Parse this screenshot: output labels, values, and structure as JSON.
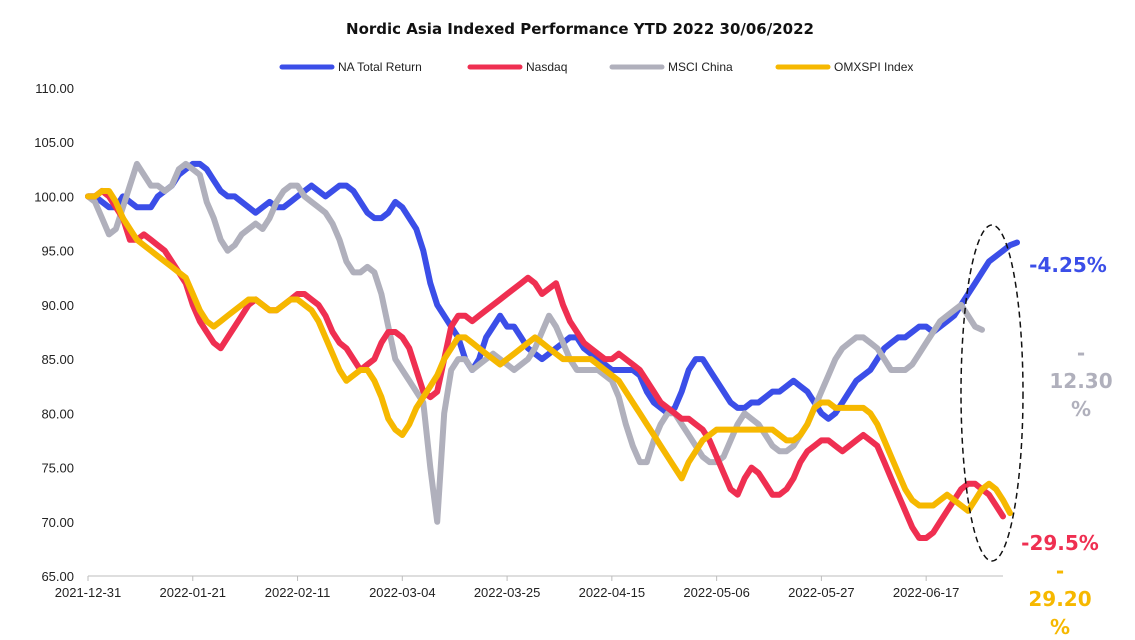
{
  "chart_data": {
    "type": "line",
    "title": "Nordic Asia Indexed Performance YTD 2022 30/06/2022",
    "xlabel": "",
    "ylabel": "",
    "ylim": [
      65,
      110
    ],
    "y_ticks": [
      "65.00",
      "70.00",
      "75.00",
      "80.00",
      "85.00",
      "90.00",
      "95.00",
      "100.00",
      "105.00",
      "110.00"
    ],
    "y_tick_values": [
      65,
      70,
      75,
      80,
      85,
      90,
      95,
      100,
      105,
      110
    ],
    "x_tick_labels": [
      "2021-12-31",
      "2022-01-21",
      "2022-02-11",
      "2022-03-04",
      "2022-03-25",
      "2022-04-15",
      "2022-05-06",
      "2022-05-27",
      "2022-06-17"
    ],
    "x_tick_index": [
      0,
      15,
      30,
      45,
      60,
      75,
      90,
      105,
      120
    ],
    "x_range": [
      0,
      131
    ],
    "grid": false,
    "legend_position": "top",
    "series": [
      {
        "name": "NA Total Return",
        "color": "#3b4ee8",
        "values": [
          100,
          100,
          99.5,
          99,
          99,
          100,
          99.5,
          99,
          99,
          99,
          100,
          100.5,
          101,
          102,
          102.5,
          103,
          103,
          102.5,
          101.5,
          100.5,
          100,
          100,
          99.5,
          99,
          98.5,
          99,
          99.5,
          99,
          99,
          99.5,
          100,
          100.5,
          101,
          100.5,
          100,
          100.5,
          101,
          101,
          100.5,
          99.5,
          98.5,
          98,
          98,
          98.5,
          99.5,
          99,
          98,
          97,
          95,
          92,
          90,
          89,
          88,
          87,
          85,
          84,
          85,
          87,
          88,
          89,
          88,
          88,
          87,
          86,
          85.5,
          85,
          85.5,
          86,
          86.5,
          87,
          87,
          86,
          85.5,
          85,
          84.5,
          84,
          84,
          84,
          84,
          83.5,
          82,
          81,
          80.5,
          80,
          80.5,
          82,
          84,
          85,
          85,
          84,
          83,
          82,
          81,
          80.5,
          80.5,
          81,
          81,
          81.5,
          82,
          82,
          82.5,
          83,
          82.5,
          82,
          81,
          80,
          79.5,
          80,
          81,
          82,
          83,
          83.5,
          84,
          85,
          86,
          86.5,
          87,
          87,
          87.5,
          88,
          88,
          87.5,
          88,
          88.5,
          89,
          90,
          91,
          92,
          93,
          94,
          94.5,
          95,
          95.5,
          95.75
        ]
      },
      {
        "name": "Nasdaq",
        "color": "#ef2f51",
        "values": [
          100,
          100,
          100.5,
          100,
          99,
          98,
          96,
          96,
          96.5,
          96,
          95.5,
          95,
          94,
          93,
          92,
          90,
          88.5,
          87.5,
          86.5,
          86,
          87,
          88,
          89,
          90,
          90.5,
          90,
          89.5,
          89.5,
          90,
          90.5,
          91,
          91,
          90.5,
          90,
          89,
          87.5,
          86.5,
          86,
          85,
          84,
          84.5,
          85,
          86.5,
          87.5,
          87.5,
          87,
          86,
          84,
          82,
          81.5,
          82,
          85,
          88,
          89,
          89,
          88.5,
          89,
          89.5,
          90,
          90.5,
          91,
          91.5,
          92,
          92.5,
          92,
          91,
          91.5,
          92,
          90,
          88.5,
          87.5,
          86.5,
          86,
          85.5,
          85,
          85,
          85.5,
          85,
          84.5,
          84,
          83,
          82,
          81,
          80.5,
          80,
          79.5,
          79.5,
          79,
          78.5,
          77.5,
          76,
          74.5,
          73,
          72.5,
          74,
          75,
          74.5,
          73.5,
          72.5,
          72.5,
          73,
          74,
          75.5,
          76.5,
          77,
          77.5,
          77.5,
          77,
          76.5,
          77,
          77.5,
          78,
          77.5,
          77,
          75.5,
          74,
          72.5,
          71,
          69.5,
          68.5,
          68.5,
          69,
          70,
          71,
          72,
          73,
          73.5,
          73.5,
          73,
          72.5,
          71.5,
          70.5
        ]
      },
      {
        "name": "MSCI China",
        "color": "#b0b0bc",
        "values": [
          100,
          99.5,
          98,
          96.5,
          97,
          99,
          101,
          103,
          102,
          101,
          101,
          100.5,
          101,
          102.5,
          103,
          102.5,
          102,
          99.5,
          98,
          96,
          95,
          95.5,
          96.5,
          97,
          97.5,
          97,
          98,
          99.5,
          100.5,
          101,
          101,
          100,
          99.5,
          99,
          98.5,
          97.5,
          96,
          94,
          93,
          93,
          93.5,
          93,
          91,
          88,
          85,
          84,
          83,
          82,
          81,
          75,
          70,
          80,
          84,
          85,
          85,
          84,
          84.5,
          85,
          85.5,
          85,
          84.5,
          84,
          84.5,
          85,
          86,
          87.5,
          89,
          88,
          86.5,
          85,
          84,
          84,
          84,
          84,
          83.5,
          83,
          81.5,
          79,
          77,
          75.5,
          75.5,
          77.5,
          79,
          80,
          80,
          79,
          78,
          77,
          76,
          75.5,
          75.5,
          76,
          77.5,
          79,
          80,
          79.5,
          79,
          78,
          77,
          76.5,
          76.5,
          77,
          78,
          79,
          80.5,
          82,
          83.5,
          85,
          86,
          86.5,
          87,
          87,
          86.5,
          86,
          85,
          84,
          84,
          84,
          84.5,
          85.5,
          86.5,
          87.5,
          88.5,
          89,
          89.5,
          90,
          89,
          88,
          87.7
        ]
      },
      {
        "name": "OMXSPI Index",
        "color": "#f6b800",
        "values": [
          100,
          100,
          100.5,
          100.5,
          99.5,
          98,
          97,
          96,
          95.5,
          95,
          94.5,
          94,
          93.5,
          93,
          92.5,
          91,
          89.5,
          88.5,
          88,
          88.5,
          89,
          89.5,
          90,
          90.5,
          90.5,
          90,
          89.5,
          89.5,
          90,
          90.5,
          90.5,
          90,
          89.5,
          88.5,
          87,
          85.5,
          84,
          83,
          83.5,
          84,
          84,
          83,
          81.5,
          79.5,
          78.5,
          78,
          79,
          80.5,
          81.5,
          82.5,
          83.5,
          85,
          86,
          87,
          87,
          86.5,
          86,
          85.5,
          85,
          84.5,
          85,
          85.5,
          86,
          86.5,
          87,
          86.5,
          86,
          85.5,
          85,
          85,
          85,
          85,
          85,
          84.5,
          84,
          83.5,
          83,
          82,
          81,
          80,
          79,
          78,
          77,
          76,
          75,
          74,
          75.5,
          76.5,
          77.5,
          78,
          78.5,
          78.5,
          78.5,
          78.5,
          78.5,
          78.5,
          78.5,
          78.5,
          78.5,
          78,
          77.5,
          77.5,
          78,
          79,
          80.5,
          81,
          81,
          80.5,
          80.5,
          80.5,
          80.5,
          80.5,
          80,
          79,
          77.5,
          76,
          74.5,
          73,
          72,
          71.5,
          71.5,
          71.5,
          72,
          72.5,
          72,
          71.5,
          71,
          72,
          73,
          73.5,
          73,
          72,
          70.8
        ]
      }
    ],
    "annotations": [
      {
        "series": "NA Total Return",
        "text": [
          "-4.25%"
        ],
        "color": "#3b4ee8"
      },
      {
        "series": "MSCI China",
        "text": [
          "-",
          "12.30",
          "%"
        ],
        "color": "#b0b0bc"
      },
      {
        "series": "Nasdaq",
        "text": [
          "-29.5%"
        ],
        "color": "#ef2f51"
      },
      {
        "series": "OMXSPI Index",
        "text": [
          "-",
          "29.20",
          "%"
        ],
        "color": "#f6b800"
      }
    ],
    "highlight_ellipse": true
  }
}
